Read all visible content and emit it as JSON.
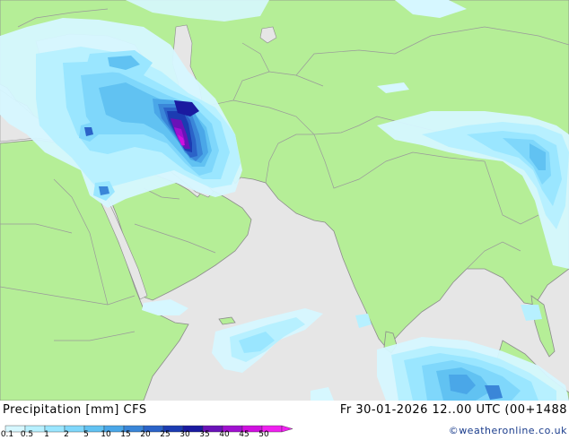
{
  "map": {
    "colors": {
      "sea": "#e6e6e6",
      "land": "#b5ee97",
      "border": "#9a9a9a",
      "coast": "#8c8c8c"
    }
  },
  "footer": {
    "title": "Precipitation [mm] CFS",
    "datetime": "Fr 30-01-2026 12..00 UTC (00+1488",
    "credit": "©weatheronline.co.uk"
  },
  "legend": {
    "labels": [
      "0.1",
      "0.5",
      "1",
      "2",
      "5",
      "10",
      "15",
      "20",
      "25",
      "30",
      "35",
      "40",
      "45",
      "50"
    ],
    "colors": [
      "#d6f7ff",
      "#b7f0ff",
      "#9ae6ff",
      "#7fd7fb",
      "#61c2f2",
      "#4aa7e8",
      "#3a86d8",
      "#2b63c8",
      "#1c3cb2",
      "#1a1aa0",
      "#6a12b8",
      "#a010d0",
      "#d010e0",
      "#f020f0"
    ]
  }
}
